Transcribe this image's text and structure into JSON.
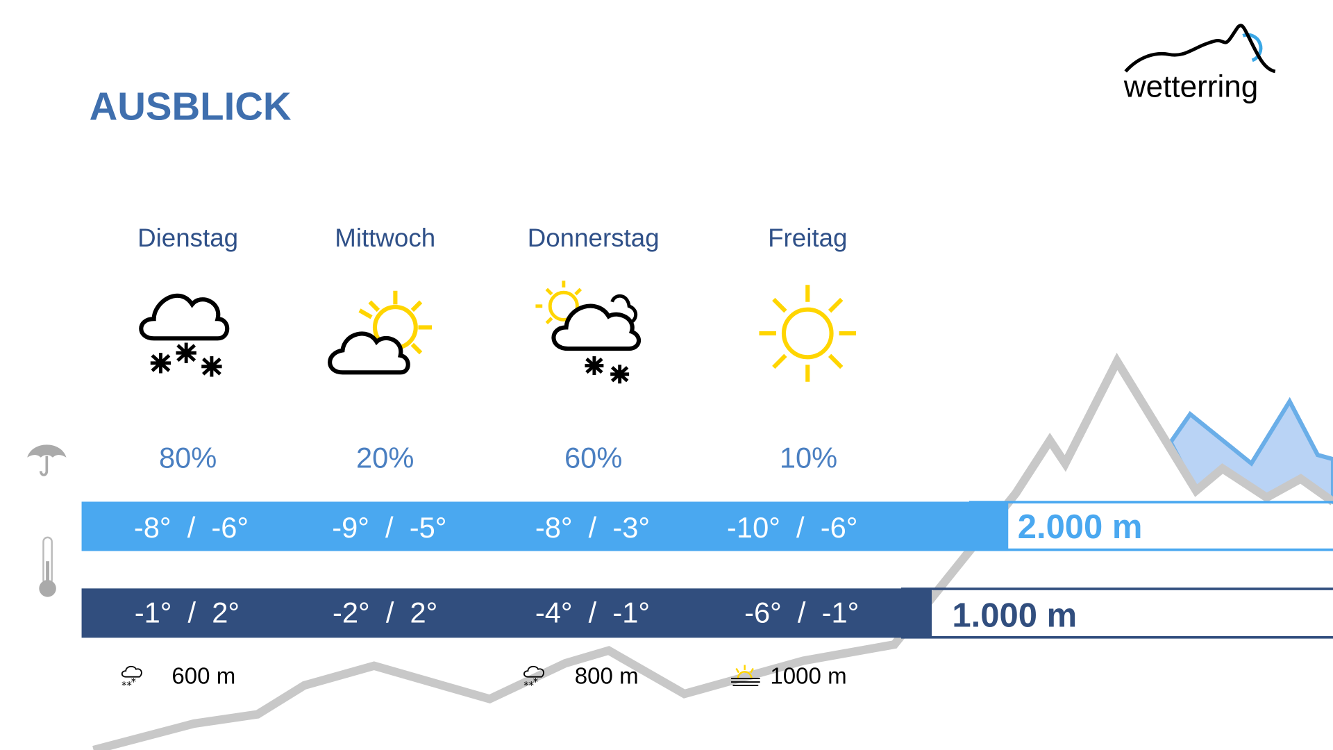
{
  "title": "AUSBLICK",
  "logo": {
    "text": "wetterring",
    "accent": "#3aa7e6"
  },
  "colors": {
    "title": "#3f6fae",
    "high_bar": "#4aa8f0",
    "low_bar": "#314e7e",
    "sun": "#ffd500",
    "mountain": "#c8c8c8"
  },
  "rows": {
    "precip_icon": "umbrella-icon",
    "temp_icon": "thermometer-icon"
  },
  "days": [
    {
      "name": "Dienstag",
      "icon": "snow-cloud-icon",
      "precip": "80%",
      "high_temp": "-8°  /  -6°",
      "low_temp": "-1°  /  2°"
    },
    {
      "name": "Mittwoch",
      "icon": "sun-behind-cloud-icon",
      "precip": "20%",
      "high_temp": "-9°  /  -5°",
      "low_temp": "-2°  /  2°"
    },
    {
      "name": "Donnerstag",
      "icon": "sun-cloud-snow-icon",
      "precip": "60%",
      "high_temp": "-8°  /  -3°",
      "low_temp": "-4°  /  -1°"
    },
    {
      "name": "Freitag",
      "icon": "sun-icon",
      "precip": "10%",
      "high_temp": "-10°  /  -6°",
      "low_temp": "-6°  /  -1°"
    }
  ],
  "altitudes": {
    "high": "2.000 m",
    "low": "1.000 m"
  },
  "snow_lines": [
    {
      "icon": "snow-cloud-icon",
      "value": "600 m"
    },
    {
      "icon": "snow-cloud-icon",
      "value": "800 m"
    },
    {
      "icon": "fog-sun-icon",
      "value": "1000 m"
    }
  ]
}
